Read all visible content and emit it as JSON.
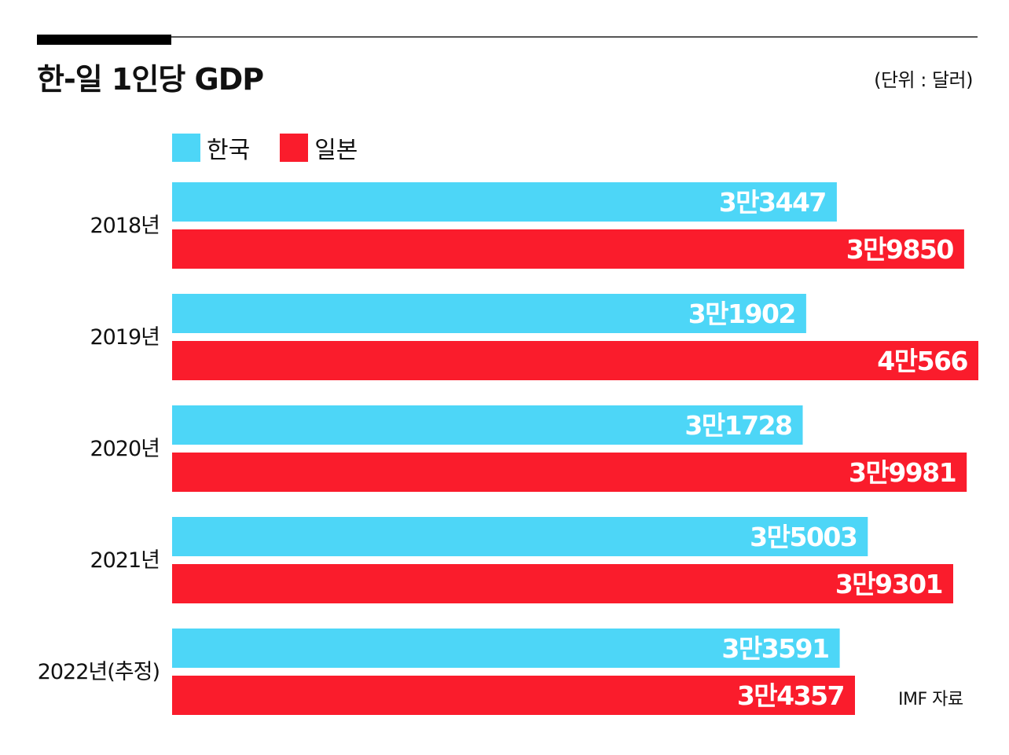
{
  "header": {
    "title": "한-일 1인당 GDP",
    "unit": "(단위 : 달러)"
  },
  "source": "IMF 자료",
  "colors": {
    "korea": "#4dd6f7",
    "japan": "#fa1c2c"
  },
  "chart_data": {
    "type": "bar",
    "orientation": "horizontal",
    "title": "한-일 1인당 GDP",
    "xlabel": "",
    "ylabel": "",
    "unit": "(단위 : 달러)",
    "grid": false,
    "legend_position": "top-left",
    "xlim": [
      0,
      40566
    ],
    "categories": [
      "2018년",
      "2019년",
      "2020년",
      "2021년",
      "2022년(추정)"
    ],
    "series": [
      {
        "name": "한국",
        "color": "#4dd6f7",
        "values": [
          33447,
          31902,
          31728,
          35003,
          33591
        ],
        "labels": [
          "3만3447",
          "3만1902",
          "3만1728",
          "3만5003",
          "3만3591"
        ]
      },
      {
        "name": "일본",
        "color": "#fa1c2c",
        "values": [
          39850,
          40566,
          39981,
          39301,
          34357
        ],
        "labels": [
          "3만9850",
          "4만566",
          "3만9981",
          "3만9301",
          "3만4357"
        ]
      }
    ]
  }
}
